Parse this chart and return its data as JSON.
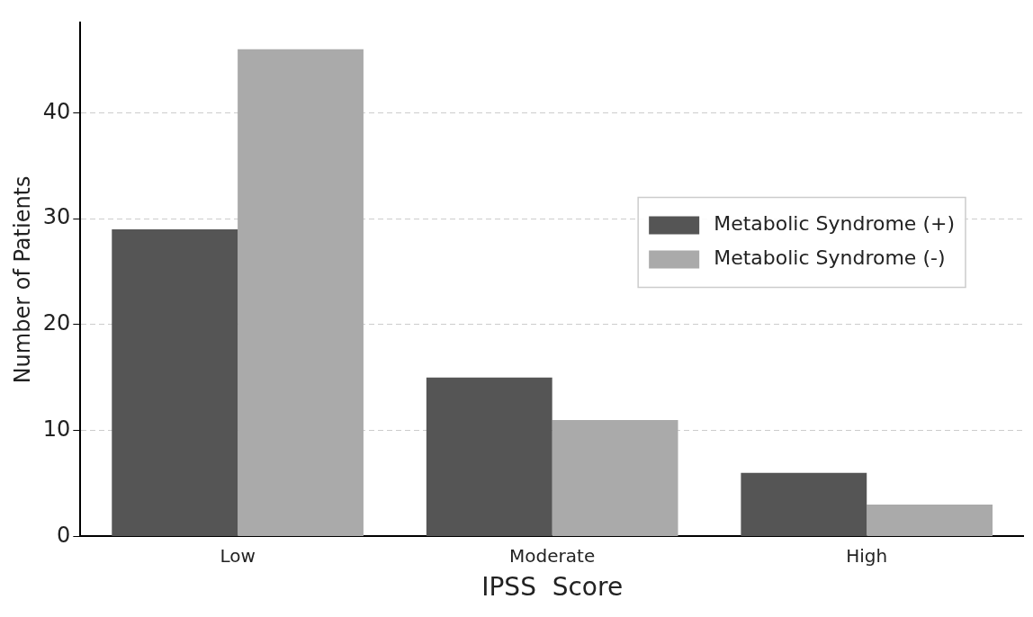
{
  "chart_data": {
    "type": "bar",
    "xlabel": "IPSS  Score",
    "ylabel": "Number of Patients",
    "categories": [
      "Low",
      "Moderate",
      "High"
    ],
    "series": [
      {
        "name": "Metabolic Syndrome (+)",
        "color": "#555555",
        "values": [
          29,
          15,
          6
        ]
      },
      {
        "name": "Metabolic Syndrome (-)",
        "color": "#aaaaaa",
        "values": [
          46,
          11,
          3
        ]
      }
    ],
    "ylim": [
      0,
      48.5
    ],
    "yticks": [
      0,
      10,
      20,
      30,
      40
    ],
    "grid": "y",
    "legend": "right"
  }
}
